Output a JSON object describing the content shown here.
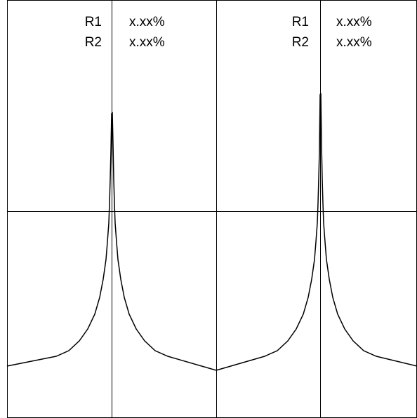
{
  "panels": [
    {
      "readouts": [
        {
          "label": "R1",
          "value": "x.xx%"
        },
        {
          "label": "R2",
          "value": "x.xx%"
        }
      ]
    },
    {
      "readouts": [
        {
          "label": "R1",
          "value": "x.xx%"
        },
        {
          "label": "R2",
          "value": "x.xx%"
        }
      ]
    }
  ],
  "colors": {
    "background": "#ffffff",
    "line": "#000000"
  }
}
